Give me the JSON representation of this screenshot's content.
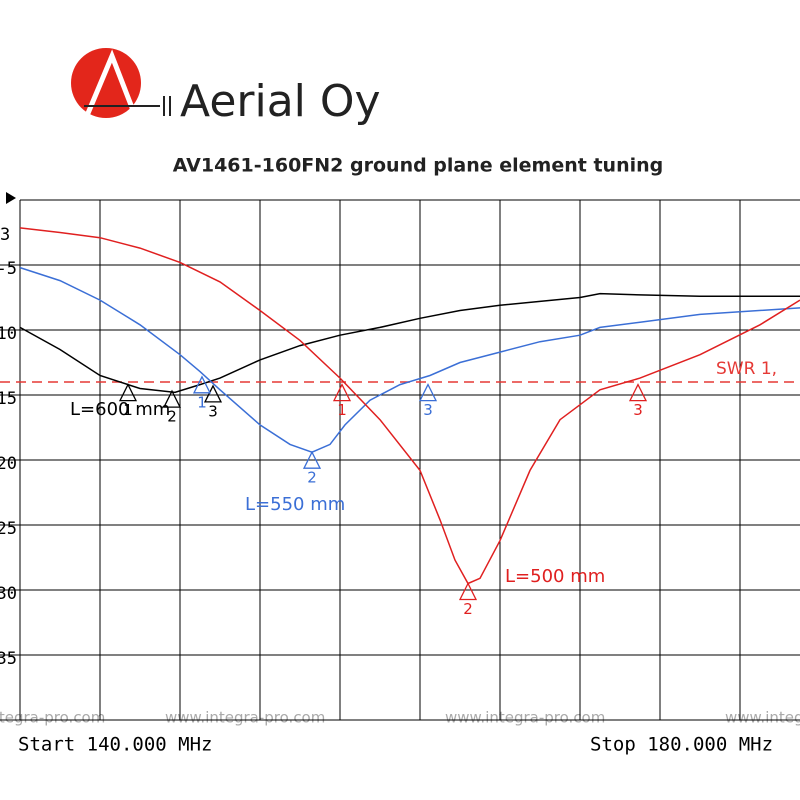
{
  "brand": "Aerial Oy",
  "chart_data": {
    "type": "line",
    "title": "AV1461-160FN2 ground plane element tuning",
    "channel_label": "3",
    "start_label": "Start 140.000 MHz",
    "stop_label": "Stop 180.000 MHz",
    "watermark": "www.integra-pro.com",
    "xlim": [
      140,
      180
    ],
    "xticks": [
      140,
      144,
      148,
      152,
      156,
      160,
      164,
      168,
      172,
      176,
      180
    ],
    "ylim": [
      -40,
      0
    ],
    "yticks": [
      -5,
      -10,
      -15,
      -20,
      -25,
      -30,
      -35
    ],
    "grid": true,
    "reference": {
      "label": "SWR 1,",
      "value": -14,
      "color": "#e53935"
    },
    "series": [
      {
        "name": "L=600 mm",
        "color": "#000000",
        "x": [
          140,
          142,
          144,
          146,
          147.75,
          149,
          150,
          152,
          154,
          156,
          158,
          160,
          162,
          164,
          166,
          168,
          169,
          171,
          174,
          179
        ],
        "values": [
          -9.8,
          -11.5,
          -13.5,
          -14.5,
          -14.8,
          -14.2,
          -13.7,
          -12.3,
          -11.2,
          -10.4,
          -9.8,
          -9.1,
          -8.5,
          -8.1,
          -7.8,
          -7.5,
          -7.2,
          -7.3,
          -7.4,
          -7.4
        ],
        "markers": [
          {
            "label": "1",
            "x": 145.4,
            "y": -14.2
          },
          {
            "label": "2",
            "x": 147.6,
            "y": -14.7
          },
          {
            "label": "3",
            "x": 149.65,
            "y": -14.3
          }
        ]
      },
      {
        "name": "L=550 mm",
        "color": "#3b6fd6",
        "x": [
          140,
          142,
          144,
          146,
          148,
          149,
          150,
          152,
          153.5,
          154.6,
          155.5,
          156.25,
          157.5,
          159,
          160.5,
          162,
          164,
          166,
          168,
          169,
          171,
          174,
          179
        ],
        "values": [
          -5.2,
          -6.2,
          -7.7,
          -9.6,
          -11.9,
          -13.2,
          -14.6,
          -17.3,
          -18.8,
          -19.4,
          -18.8,
          -17.3,
          -15.4,
          -14.2,
          -13.5,
          -12.5,
          -11.7,
          -10.9,
          -10.4,
          -9.8,
          -9.4,
          -8.8,
          -8.3
        ],
        "markers": [
          {
            "label": "1",
            "x": 149.1,
            "y": -13.6
          },
          {
            "label": "2",
            "x": 154.6,
            "y": -19.4
          },
          {
            "label": "3",
            "x": 160.4,
            "y": -14.2
          }
        ]
      },
      {
        "name": "L=500 mm",
        "color": "#e02020",
        "x": [
          140,
          142,
          144,
          146,
          148,
          150,
          152,
          154,
          156,
          158,
          160,
          161,
          161.75,
          162.4,
          163,
          164,
          165.5,
          167,
          169,
          171,
          174,
          177,
          179
        ],
        "values": [
          -2.15,
          -2.5,
          -2.9,
          -3.7,
          -4.8,
          -6.3,
          -8.5,
          -10.8,
          -13.7,
          -16.9,
          -20.8,
          -24.6,
          -27.7,
          -29.5,
          -29.1,
          -26.2,
          -20.8,
          -16.9,
          -14.6,
          -13.7,
          -11.9,
          -9.6,
          -7.7
        ],
        "markers": [
          {
            "label": "1",
            "x": 156.1,
            "y": -14.2
          },
          {
            "label": "2",
            "x": 162.4,
            "y": -29.5
          },
          {
            "label": "3",
            "x": 170.9,
            "y": -14.2
          }
        ]
      }
    ]
  }
}
